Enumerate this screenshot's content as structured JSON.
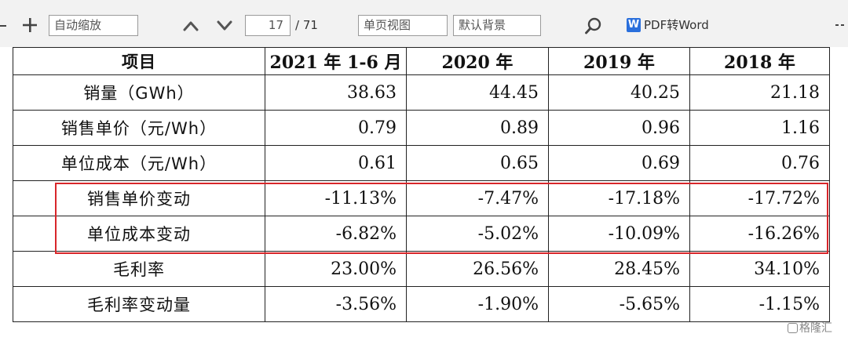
{
  "toolbar": {
    "zoom_value": "自动缩放",
    "page_current": "17",
    "page_total": "/ 71",
    "view_mode": "单页视图",
    "background_mode": "默认背景",
    "pdf_to_word_logo": "W",
    "pdf_to_word_label": "PDF转Word"
  },
  "table": {
    "headers": [
      "项目",
      "2021 年 1-6 月",
      "2020 年",
      "2019 年",
      "2018 年"
    ],
    "rows": [
      {
        "label": "销量（GWh）",
        "values": [
          "38.63",
          "44.45",
          "40.25",
          "21.18"
        ]
      },
      {
        "label": "销售单价（元/Wh）",
        "values": [
          "0.79",
          "0.89",
          "0.96",
          "1.16"
        ]
      },
      {
        "label": "单位成本（元/Wh）",
        "values": [
          "0.61",
          "0.65",
          "0.69",
          "0.76"
        ]
      },
      {
        "label": "销售单价变动",
        "values": [
          "-11.13%",
          "-7.47%",
          "-17.18%",
          "-17.72%"
        ]
      },
      {
        "label": "单位成本变动",
        "values": [
          "-6.82%",
          "-5.02%",
          "-10.09%",
          "-16.26%"
        ]
      },
      {
        "label": "毛利率",
        "values": [
          "23.00%",
          "26.56%",
          "28.45%",
          "34.10%"
        ]
      },
      {
        "label": "毛利率变动量",
        "values": [
          "-3.56%",
          "-1.90%",
          "-5.65%",
          "-1.15%"
        ]
      }
    ]
  },
  "watermark": "格隆汇",
  "colors": {
    "highlight_border": "#d8262a",
    "pdf_logo": "#2a6fdc",
    "toolbar_bg": "#f2f2f2"
  },
  "icons": [
    "plus-icon",
    "chevron-up-icon",
    "chevron-down-icon",
    "search-icon",
    "word-logo-icon"
  ]
}
